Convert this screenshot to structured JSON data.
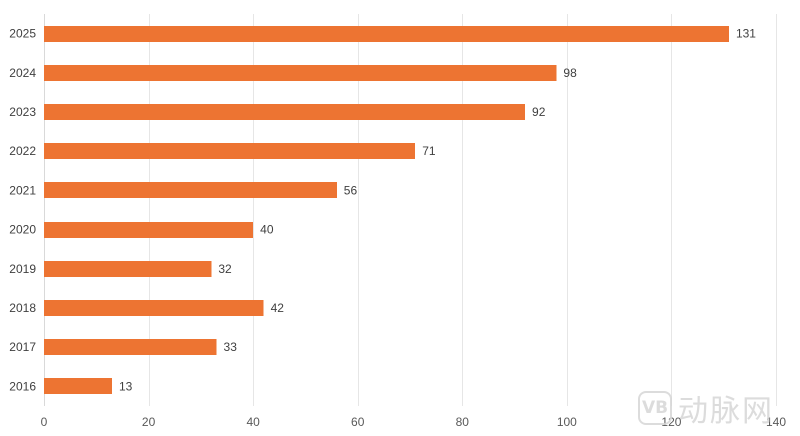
{
  "chart_data": {
    "type": "bar",
    "orientation": "horizontal",
    "categories": [
      "2025",
      "2024",
      "2023",
      "2022",
      "2021",
      "2020",
      "2019",
      "2018",
      "2017",
      "2016"
    ],
    "values": [
      131,
      98,
      92,
      71,
      56,
      40,
      32,
      42,
      33,
      13
    ],
    "title": "",
    "xlabel": "",
    "ylabel": "",
    "xlim": [
      0,
      140
    ],
    "xticks": [
      0,
      20,
      40,
      60,
      80,
      100,
      120,
      140
    ],
    "grid": "vertical",
    "legend": "none",
    "bar_color": "#ED7432"
  },
  "watermark": {
    "logo": "VB",
    "text": "动脉网"
  }
}
